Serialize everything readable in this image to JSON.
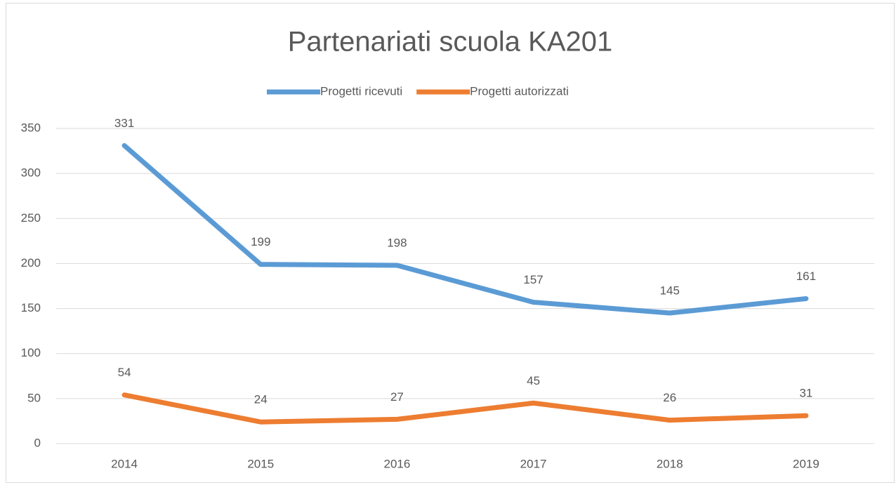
{
  "chart_data": {
    "type": "line",
    "title": "Partenariati scuola KA201",
    "categories": [
      "2014",
      "2015",
      "2016",
      "2017",
      "2018",
      "2019"
    ],
    "series": [
      {
        "name": "Progetti ricevuti",
        "color": "#5b9bd5",
        "values": [
          331,
          199,
          198,
          157,
          145,
          161
        ]
      },
      {
        "name": "Progetti autorizzati",
        "color": "#ed7d31",
        "values": [
          54,
          24,
          27,
          45,
          26,
          31
        ]
      }
    ],
    "ylim": [
      0,
      350
    ],
    "yticks": [
      0,
      50,
      100,
      150,
      200,
      250,
      300,
      350
    ],
    "grid": true,
    "legend": "top"
  }
}
